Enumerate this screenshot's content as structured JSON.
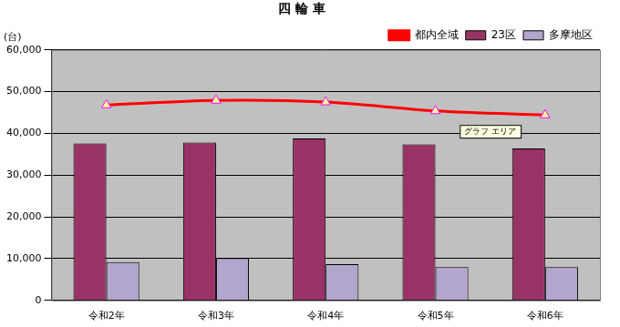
{
  "chart_data": {
    "type": "bar",
    "title": "四 輪 車",
    "y_label": "(台)",
    "categories": [
      "令和2年",
      "令和3年",
      "令和4年",
      "令和5年",
      "令和6年"
    ],
    "series": [
      {
        "name": "都内全域",
        "type": "line",
        "color": "#ff0000",
        "marker": "triangle",
        "values": [
          46800,
          47900,
          47500,
          45400,
          44400
        ]
      },
      {
        "name": "23区",
        "type": "bar",
        "color": "#993366",
        "values": [
          37600,
          37800,
          38800,
          37400,
          36400
        ]
      },
      {
        "name": "多摩地区",
        "type": "bar",
        "color": "#b3a6cc",
        "values": [
          9200,
          10100,
          8700,
          8000,
          8000
        ]
      }
    ],
    "ylim": [
      0,
      60000
    ],
    "yticks": [
      {
        "value": 0,
        "label": "0"
      },
      {
        "value": 10000,
        "label": "10,000"
      },
      {
        "value": 20000,
        "label": "20,000"
      },
      {
        "value": 30000,
        "label": "30,000"
      },
      {
        "value": 40000,
        "label": "40,000"
      },
      {
        "value": 50000,
        "label": "50,000"
      },
      {
        "value": 60000,
        "label": "60,000"
      }
    ],
    "grid": true,
    "legend": "top right",
    "annotations": [
      "グラフ エリア"
    ]
  }
}
